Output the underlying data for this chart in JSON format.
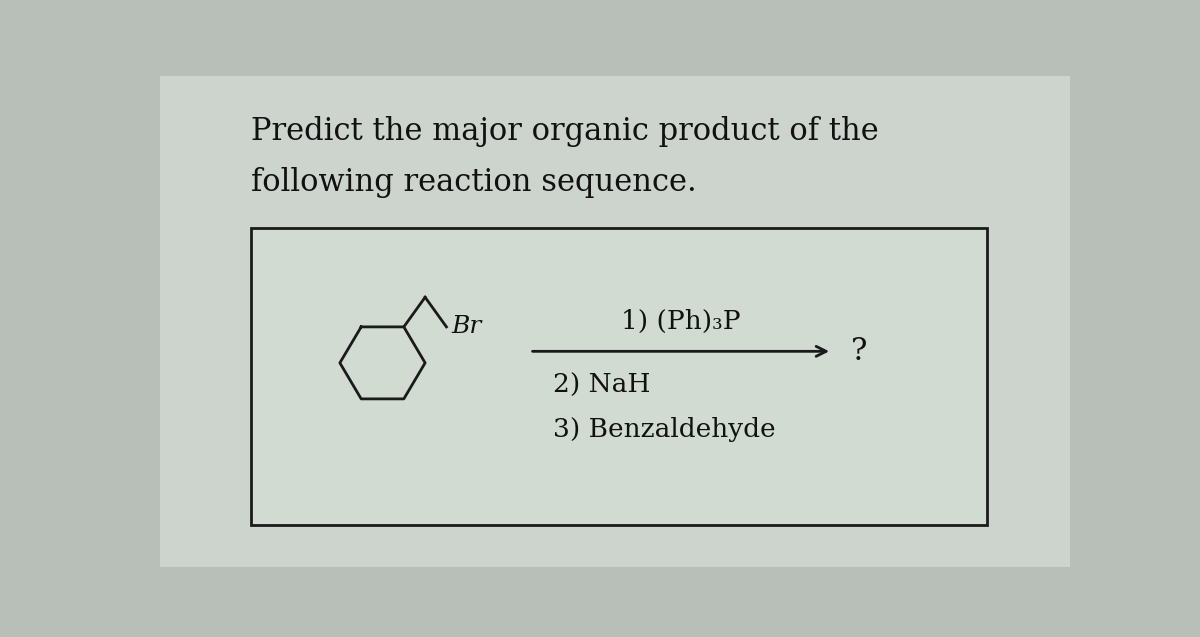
{
  "title_line1": "Predict the major organic product of the",
  "title_line2": "following reaction sequence.",
  "reaction_steps": "1) (Ph)₃P",
  "step2": "2) NaH",
  "step3": "3) Benzaldehyde",
  "question_mark": "?",
  "br_label": "Br",
  "bg_color": "#b8bfb8",
  "inner_bg": "#cdd4cd",
  "box_bg": "#d2dbd2",
  "box_edge": "#1a1a1a",
  "text_color": "#111111",
  "title_fontsize": 22,
  "body_fontsize": 19,
  "fig_width": 12.0,
  "fig_height": 6.37
}
